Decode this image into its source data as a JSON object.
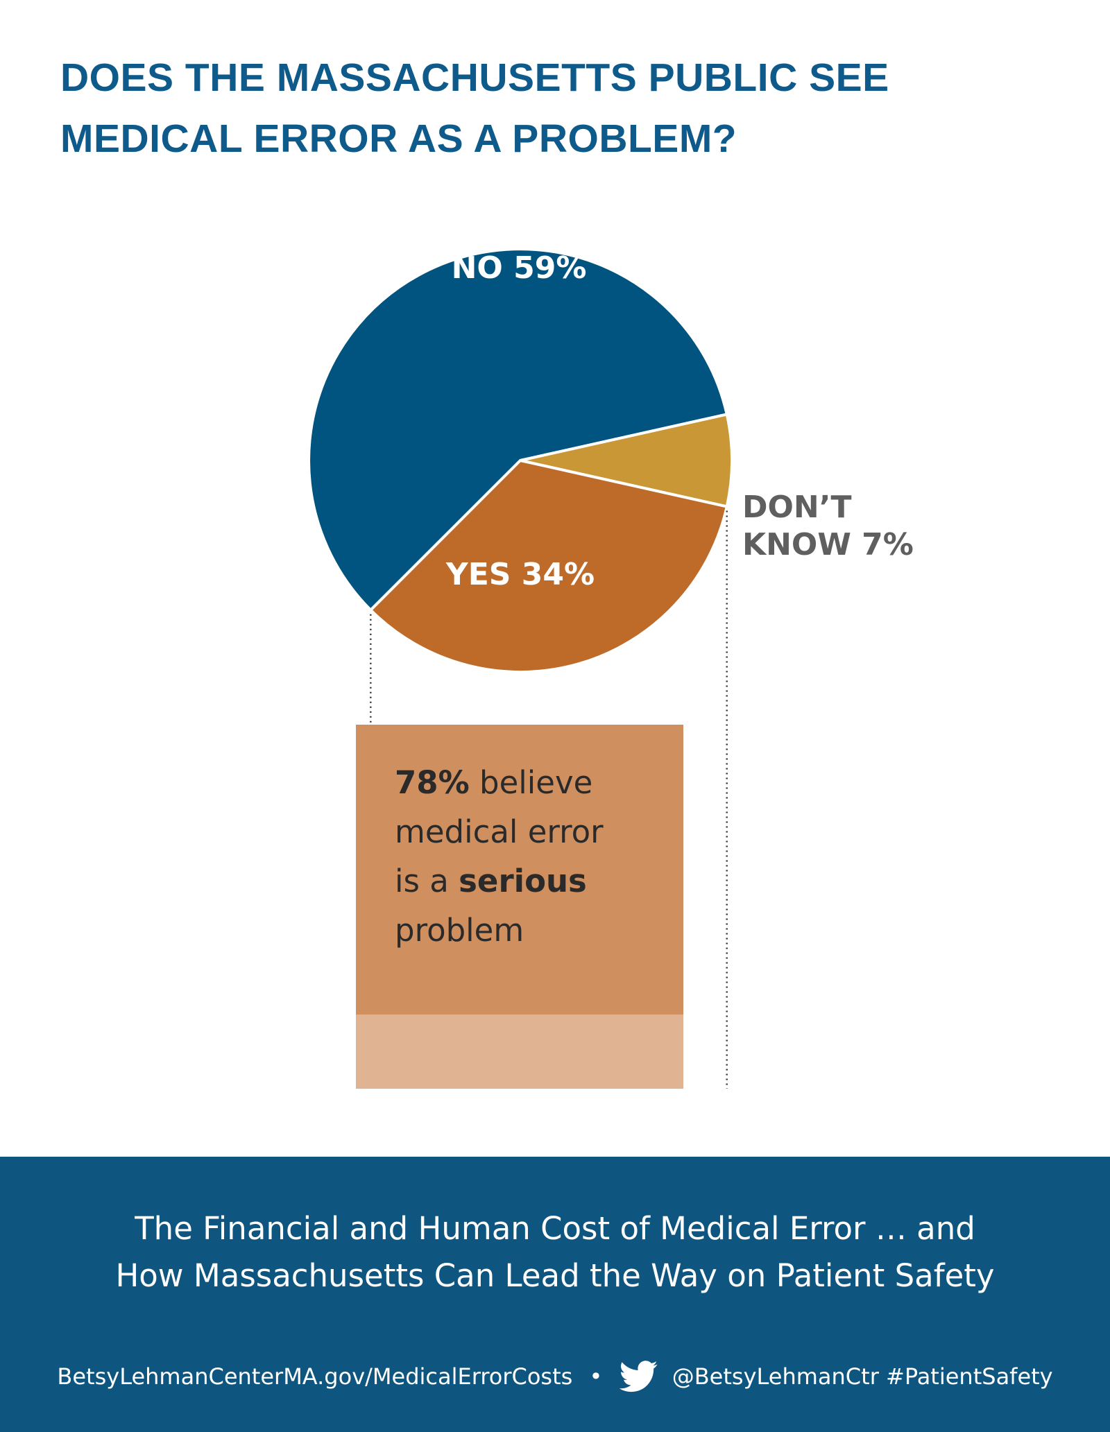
{
  "title_lines": [
    "DOES THE MASSACHUSETTS PUBLIC SEE",
    "MEDICAL ERROR AS A PROBLEM?"
  ],
  "chart_data": {
    "type": "pie",
    "slices": [
      {
        "label": "NO 59%",
        "name": "NO",
        "value": 59,
        "color": "#00547f",
        "label_color": "#ffffff"
      },
      {
        "label": "DON’T KNOW 7%",
        "label_lines": [
          "DON’T",
          "KNOW 7%"
        ],
        "name": "DON’T KNOW",
        "value": 7,
        "color": "#c99735",
        "label_color": "#5f5f5f"
      },
      {
        "label": "YES 34%",
        "name": "YES",
        "value": 34,
        "color": "#be6a29",
        "label_color": "#ffffff"
      }
    ]
  },
  "callout": {
    "stat": "78%",
    "line1_rest": " believe",
    "line2": "medical error",
    "line3_pre": "is a ",
    "line3_bold": "serious",
    "line4": "problem",
    "color_top": "#d08f5e",
    "color_bottom": "#e0b392"
  },
  "footer": {
    "title_lines": [
      "The Financial and Human Cost of Medical Error … and",
      "How Massachusetts Can Lead the Way on Patient Safety"
    ],
    "url": "BetsyLehmanCenterMA.gov/MedicalErrorCosts",
    "separator": "•",
    "icon": "twitter-bird-icon",
    "handle": "@BetsyLehmanCtr #PatientSafety",
    "background": "#0e5580"
  }
}
